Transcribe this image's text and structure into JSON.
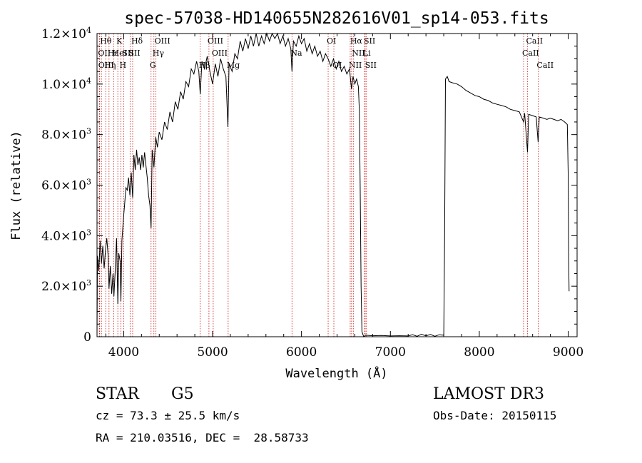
{
  "chart_data": {
    "type": "line",
    "title": "spec-57038-HD140655N282616V01_sp14-053.fits",
    "xlabel": "Wavelength (Å)",
    "ylabel": "Flux (relative)",
    "xlim": [
      3700,
      9100
    ],
    "ylim": [
      0,
      12000
    ],
    "x_ticks": [
      4000,
      5000,
      6000,
      7000,
      8000,
      9000
    ],
    "y_ticks": [
      {
        "value": 0,
        "mantissa": "0",
        "exp": ""
      },
      {
        "value": 2000,
        "mantissa": "2.0×10",
        "exp": "3"
      },
      {
        "value": 4000,
        "mantissa": "4.0×10",
        "exp": "3"
      },
      {
        "value": 6000,
        "mantissa": "6.0×10",
        "exp": "3"
      },
      {
        "value": 8000,
        "mantissa": "8.0×10",
        "exp": "3"
      },
      {
        "value": 10000,
        "mantissa": "1.0×10",
        "exp": "4"
      },
      {
        "value": 12000,
        "mantissa": "1.2×10",
        "exp": "4"
      }
    ],
    "spectral_lines": [
      {
        "wavelength": 3750,
        "label": "Hθ",
        "row": 0
      },
      {
        "wavelength": 3727,
        "label": "OII",
        "row": 1
      },
      {
        "wavelength": 3730,
        "label": "OIII",
        "row": 2
      },
      {
        "wavelength": 3798,
        "label": "Hη",
        "row": 2
      },
      {
        "wavelength": 3835,
        "label": "Hε",
        "row": 1
      },
      {
        "wavelength": 3889,
        "label": "HeI",
        "row": 1
      },
      {
        "wavelength": 3934,
        "label": "K",
        "row": 0
      },
      {
        "wavelength": 3969,
        "label": "H",
        "row": 2
      },
      {
        "wavelength": 4000,
        "label": "SII",
        "row": 1
      },
      {
        "wavelength": 4101,
        "label": "Hδ",
        "row": 0
      },
      {
        "wavelength": 4072,
        "label": "SII",
        "row": 1
      },
      {
        "wavelength": 4308,
        "label": "G",
        "row": 2
      },
      {
        "wavelength": 4340,
        "label": "Hγ",
        "row": 1
      },
      {
        "wavelength": 4363,
        "label": "OIII",
        "row": 0
      },
      {
        "wavelength": 4861,
        "label": "Hβ",
        "row": 2
      },
      {
        "wavelength": 4959,
        "label": "OIII",
        "row": 0
      },
      {
        "wavelength": 5007,
        "label": "OIII",
        "row": 1
      },
      {
        "wavelength": 5175,
        "label": "Mg",
        "row": 2
      },
      {
        "wavelength": 5893,
        "label": "Na",
        "row": 1
      },
      {
        "wavelength": 6300,
        "label": "OI",
        "row": 0
      },
      {
        "wavelength": 6364,
        "label": "OI",
        "row": 2
      },
      {
        "wavelength": 6548,
        "label": "NII",
        "row": 2
      },
      {
        "wavelength": 6563,
        "label": "Hα",
        "row": 0
      },
      {
        "wavelength": 6583,
        "label": "NII",
        "row": 1
      },
      {
        "wavelength": 6708,
        "label": "Li",
        "row": 1
      },
      {
        "wavelength": 6717,
        "label": "SII",
        "row": 0
      },
      {
        "wavelength": 6731,
        "label": "SII",
        "row": 2
      },
      {
        "wavelength": 8498,
        "label": "CaII",
        "row": 1
      },
      {
        "wavelength": 8542,
        "label": "CaII",
        "row": 0
      },
      {
        "wavelength": 8662,
        "label": "CaII",
        "row": 2
      }
    ],
    "series": [
      {
        "name": "flux",
        "points": [
          [
            3700,
            0
          ],
          [
            3705,
            3200
          ],
          [
            3720,
            2600
          ],
          [
            3735,
            3800
          ],
          [
            3750,
            2900
          ],
          [
            3765,
            3600
          ],
          [
            3780,
            2700
          ],
          [
            3795,
            3400
          ],
          [
            3810,
            3900
          ],
          [
            3825,
            3200
          ],
          [
            3835,
            1900
          ],
          [
            3850,
            2800
          ],
          [
            3865,
            1700
          ],
          [
            3880,
            2500
          ],
          [
            3890,
            1600
          ],
          [
            3905,
            2600
          ],
          [
            3920,
            3900
          ],
          [
            3934,
            1300
          ],
          [
            3945,
            3300
          ],
          [
            3960,
            3000
          ],
          [
            3969,
            1400
          ],
          [
            3980,
            3800
          ],
          [
            3995,
            4600
          ],
          [
            4010,
            5200
          ],
          [
            4025,
            5900
          ],
          [
            4040,
            5800
          ],
          [
            4055,
            6300
          ],
          [
            4070,
            5600
          ],
          [
            4085,
            6500
          ],
          [
            4101,
            5500
          ],
          [
            4115,
            7200
          ],
          [
            4130,
            6600
          ],
          [
            4145,
            7400
          ],
          [
            4160,
            6800
          ],
          [
            4175,
            7100
          ],
          [
            4190,
            6600
          ],
          [
            4205,
            7200
          ],
          [
            4220,
            6700
          ],
          [
            4235,
            7300
          ],
          [
            4250,
            6800
          ],
          [
            4265,
            6300
          ],
          [
            4280,
            5600
          ],
          [
            4295,
            5200
          ],
          [
            4308,
            4300
          ],
          [
            4320,
            7400
          ],
          [
            4340,
            6700
          ],
          [
            4360,
            7900
          ],
          [
            4380,
            7500
          ],
          [
            4400,
            8100
          ],
          [
            4430,
            7800
          ],
          [
            4460,
            8500
          ],
          [
            4490,
            8200
          ],
          [
            4520,
            8900
          ],
          [
            4550,
            8500
          ],
          [
            4580,
            9300
          ],
          [
            4610,
            9000
          ],
          [
            4640,
            9700
          ],
          [
            4670,
            9400
          ],
          [
            4700,
            10100
          ],
          [
            4730,
            9900
          ],
          [
            4760,
            10600
          ],
          [
            4790,
            10400
          ],
          [
            4820,
            10900
          ],
          [
            4845,
            10500
          ],
          [
            4861,
            9600
          ],
          [
            4880,
            10900
          ],
          [
            4910,
            10600
          ],
          [
            4940,
            11100
          ],
          [
            4970,
            10500
          ],
          [
            5000,
            10000
          ],
          [
            5030,
            10800
          ],
          [
            5060,
            10300
          ],
          [
            5090,
            11000
          ],
          [
            5120,
            10600
          ],
          [
            5150,
            10300
          ],
          [
            5172,
            8300
          ],
          [
            5185,
            10800
          ],
          [
            5220,
            10500
          ],
          [
            5250,
            11200
          ],
          [
            5280,
            11000
          ],
          [
            5310,
            11700
          ],
          [
            5340,
            11300
          ],
          [
            5370,
            11800
          ],
          [
            5400,
            11400
          ],
          [
            5430,
            11900
          ],
          [
            5460,
            11500
          ],
          [
            5490,
            12000
          ],
          [
            5520,
            11500
          ],
          [
            5550,
            11900
          ],
          [
            5580,
            11600
          ],
          [
            5610,
            12000
          ],
          [
            5640,
            11700
          ],
          [
            5670,
            12000
          ],
          [
            5700,
            11800
          ],
          [
            5730,
            12000
          ],
          [
            5760,
            11600
          ],
          [
            5790,
            11900
          ],
          [
            5820,
            11500
          ],
          [
            5850,
            11800
          ],
          [
            5880,
            11400
          ],
          [
            5893,
            10500
          ],
          [
            5910,
            11700
          ],
          [
            5940,
            11500
          ],
          [
            5970,
            11900
          ],
          [
            6000,
            11600
          ],
          [
            6030,
            11800
          ],
          [
            6060,
            11300
          ],
          [
            6090,
            11600
          ],
          [
            6120,
            11200
          ],
          [
            6150,
            11500
          ],
          [
            6180,
            11100
          ],
          [
            6210,
            11300
          ],
          [
            6240,
            10900
          ],
          [
            6270,
            11200
          ],
          [
            6300,
            11000
          ],
          [
            6330,
            10700
          ],
          [
            6360,
            11000
          ],
          [
            6390,
            10600
          ],
          [
            6420,
            10900
          ],
          [
            6450,
            10500
          ],
          [
            6480,
            10700
          ],
          [
            6510,
            10400
          ],
          [
            6540,
            10600
          ],
          [
            6563,
            9800
          ],
          [
            6580,
            10300
          ],
          [
            6600,
            10000
          ],
          [
            6620,
            10200
          ],
          [
            6640,
            9900
          ],
          [
            6650,
            9000
          ],
          [
            6660,
            6000
          ],
          [
            6670,
            2000
          ],
          [
            6680,
            200
          ],
          [
            6700,
            0
          ],
          [
            6720,
            60
          ],
          [
            6800,
            40
          ],
          [
            6900,
            50
          ],
          [
            7000,
            30
          ],
          [
            7100,
            40
          ],
          [
            7200,
            30
          ],
          [
            7250,
            80
          ],
          [
            7300,
            20
          ],
          [
            7350,
            100
          ],
          [
            7400,
            30
          ],
          [
            7450,
            90
          ],
          [
            7500,
            20
          ],
          [
            7550,
            80
          ],
          [
            7600,
            60
          ],
          [
            7610,
            4000
          ],
          [
            7620,
            10200
          ],
          [
            7640,
            10300
          ],
          [
            7660,
            10100
          ],
          [
            7700,
            10050
          ],
          [
            7750,
            10000
          ],
          [
            7800,
            9900
          ],
          [
            7850,
            9750
          ],
          [
            7900,
            9650
          ],
          [
            7950,
            9550
          ],
          [
            8000,
            9500
          ],
          [
            8050,
            9400
          ],
          [
            8100,
            9350
          ],
          [
            8150,
            9250
          ],
          [
            8200,
            9200
          ],
          [
            8250,
            9150
          ],
          [
            8300,
            9100
          ],
          [
            8350,
            9000
          ],
          [
            8400,
            8950
          ],
          [
            8450,
            8900
          ],
          [
            8498,
            8500
          ],
          [
            8510,
            8850
          ],
          [
            8542,
            7300
          ],
          [
            8555,
            8800
          ],
          [
            8600,
            8750
          ],
          [
            8640,
            8700
          ],
          [
            8662,
            7700
          ],
          [
            8675,
            8700
          ],
          [
            8720,
            8650
          ],
          [
            8760,
            8600
          ],
          [
            8800,
            8650
          ],
          [
            8840,
            8600
          ],
          [
            8880,
            8550
          ],
          [
            8920,
            8600
          ],
          [
            8960,
            8500
          ],
          [
            8990,
            8400
          ],
          [
            9000,
            6500
          ],
          [
            9005,
            3000
          ],
          [
            9010,
            1800
          ]
        ]
      }
    ]
  },
  "info": {
    "class_label": "STAR",
    "subclass_label": "G5",
    "cz": "cz = 73.3 ± 25.5 km/s",
    "coords": "RA = 210.03516, DEC =  28.58733",
    "survey": "LAMOST DR3",
    "obs_date": "Obs-Date: 20150115"
  }
}
